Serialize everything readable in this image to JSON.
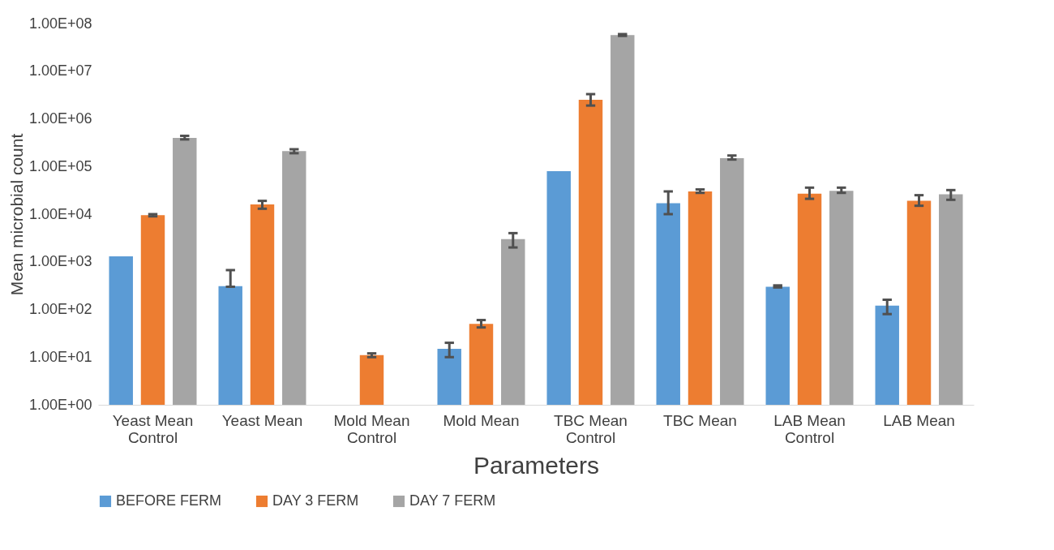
{
  "chart_data": {
    "type": "bar",
    "xlabel": "Parameters",
    "ylabel": "Mean microbial count",
    "log": true,
    "legend": "bottom",
    "grid": false,
    "categories": [
      "Yeast Mean Control",
      "Yeast Mean",
      "Mold Mean Control",
      "Mold Mean",
      "TBC Mean Control",
      "TBC Mean",
      "LAB Mean Control",
      "LAB Mean"
    ],
    "ylim": [
      1,
      100000000
    ],
    "yticks": [
      {
        "value": 1,
        "label": "1.00E+00"
      },
      {
        "value": 10,
        "label": "1.00E+01"
      },
      {
        "value": 100,
        "label": "1.00E+02"
      },
      {
        "value": 1000,
        "label": "1.00E+03"
      },
      {
        "value": 10000,
        "label": "1.00E+04"
      },
      {
        "value": 100000,
        "label": "1.00E+05"
      },
      {
        "value": 1000000,
        "label": "1.00E+06"
      },
      {
        "value": 10000000,
        "label": "1.00E+07"
      },
      {
        "value": 100000000,
        "label": "1.00E+08"
      }
    ],
    "series": [
      {
        "name": "BEFORE FERM",
        "color": "#5b9bd5",
        "values": [
          1300,
          310,
          null,
          15,
          80000,
          17000,
          300,
          120
        ],
        "errors": [
          null,
          [
            300,
            670
          ],
          null,
          [
            10,
            20
          ],
          null,
          [
            10000,
            30000
          ],
          [
            290,
            320
          ],
          [
            80,
            160
          ]
        ]
      },
      {
        "name": "DAY 3 FERM",
        "color": "#ed7d31",
        "values": [
          9500,
          16000,
          11,
          50,
          2500000,
          30000,
          27000,
          19000
        ],
        "errors": [
          [
            9000,
            10000
          ],
          [
            13000,
            19000
          ],
          [
            10,
            12
          ],
          [
            42,
            60
          ],
          [
            1900000,
            3300000
          ],
          [
            28000,
            33000
          ],
          [
            21000,
            36000
          ],
          [
            15000,
            25000
          ]
        ]
      },
      {
        "name": "DAY 7 FERM",
        "color": "#a5a5a5",
        "values": [
          400000,
          210000,
          null,
          3000,
          57000000,
          150000,
          31000,
          26000
        ],
        "errors": [
          [
            370000,
            440000
          ],
          [
            190000,
            230000
          ],
          null,
          [
            2000,
            4000
          ],
          [
            55000000,
            60000000
          ],
          [
            140000,
            170000
          ],
          [
            28000,
            36000
          ],
          [
            20000,
            32000
          ]
        ]
      }
    ]
  }
}
